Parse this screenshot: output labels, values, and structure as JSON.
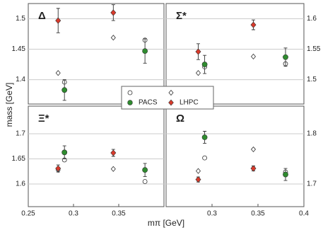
{
  "xlabel": "mπ [GeV]",
  "ylabel": "mass [GeV]",
  "chart_data": [
    {
      "type": "scatter",
      "title": "Δ",
      "xlim": [
        0.25,
        0.4
      ],
      "ylim": [
        1.36,
        1.525
      ],
      "yticks": [
        1.4,
        1.45,
        1.5
      ],
      "ytick_side": "left",
      "grid": true,
      "series": [
        {
          "name": "PACS",
          "color": "#2e8b2e",
          "marker": "circle",
          "x": [
            0.29,
            0.379
          ],
          "values": [
            1.383,
            1.447
          ],
          "errors": [
            0.017,
            0.02
          ],
          "open_values": [
            1.396,
            1.465
          ]
        },
        {
          "name": "LHPC",
          "color": "#d93a2b",
          "marker": "diamond",
          "x": [
            0.283,
            0.344
          ],
          "values": [
            1.497,
            1.51
          ],
          "errors": [
            0.02,
            0.013
          ],
          "open_values": [
            1.411,
            1.469
          ]
        }
      ]
    },
    {
      "type": "scatter",
      "title": "Σ*",
      "xlim": [
        0.25,
        0.4
      ],
      "ylim": [
        1.46,
        1.625
      ],
      "yticks": [
        1.5,
        1.55,
        1.6
      ],
      "ytick_side": "right",
      "grid": true,
      "series": [
        {
          "name": "PACS",
          "color": "#2e8b2e",
          "marker": "circle",
          "x": [
            0.292,
            0.38
          ],
          "values": [
            1.525,
            1.537
          ],
          "errors": [
            0.015,
            0.015
          ],
          "open_values": [
            1.521,
            1.526
          ]
        },
        {
          "name": "LHPC",
          "color": "#d93a2b",
          "marker": "diamond",
          "x": [
            0.285,
            0.345
          ],
          "values": [
            1.546,
            1.59
          ],
          "errors": [
            0.013,
            0.008
          ],
          "open_values": [
            1.511,
            1.538
          ]
        }
      ]
    },
    {
      "type": "scatter",
      "title": "Ξ*",
      "xlim": [
        0.25,
        0.4
      ],
      "ylim": [
        1.555,
        1.755
      ],
      "yticks": [
        1.6,
        1.65,
        1.7
      ],
      "ytick_side": "left",
      "grid": true,
      "xticks": [
        0.25,
        0.3,
        0.35
      ],
      "series": [
        {
          "name": "PACS",
          "color": "#2e8b2e",
          "marker": "circle",
          "x": [
            0.29,
            0.379
          ],
          "values": [
            1.663,
            1.628
          ],
          "errors": [
            0.013,
            0.013
          ],
          "open_values": [
            1.648,
            1.605
          ]
        },
        {
          "name": "LHPC",
          "color": "#d93a2b",
          "marker": "diamond",
          "x": [
            0.283,
            0.344
          ],
          "values": [
            1.631,
            1.662
          ],
          "errors": [
            0.007,
            0.007
          ],
          "open_values": [
            1.628,
            1.63
          ]
        }
      ]
    },
    {
      "type": "scatter",
      "title": "Ω",
      "xlim": [
        0.25,
        0.4
      ],
      "ylim": [
        1.655,
        1.855
      ],
      "yticks": [
        1.7,
        1.8
      ],
      "ytick_side": "right",
      "grid": true,
      "xticks": [
        0.3,
        0.35,
        0.4
      ],
      "series": [
        {
          "name": "PACS",
          "color": "#2e8b2e",
          "marker": "circle",
          "x": [
            0.292,
            0.38
          ],
          "values": [
            1.793,
            1.719
          ],
          "errors": [
            0.012,
            0.012
          ],
          "open_values": [
            1.752,
            1.724
          ]
        },
        {
          "name": "LHPC",
          "color": "#d93a2b",
          "marker": "diamond",
          "x": [
            0.285,
            0.345
          ],
          "values": [
            1.709,
            1.731
          ],
          "errors": [
            0.005,
            0.005
          ],
          "open_values": [
            1.726,
            1.769
          ]
        }
      ]
    }
  ]
}
